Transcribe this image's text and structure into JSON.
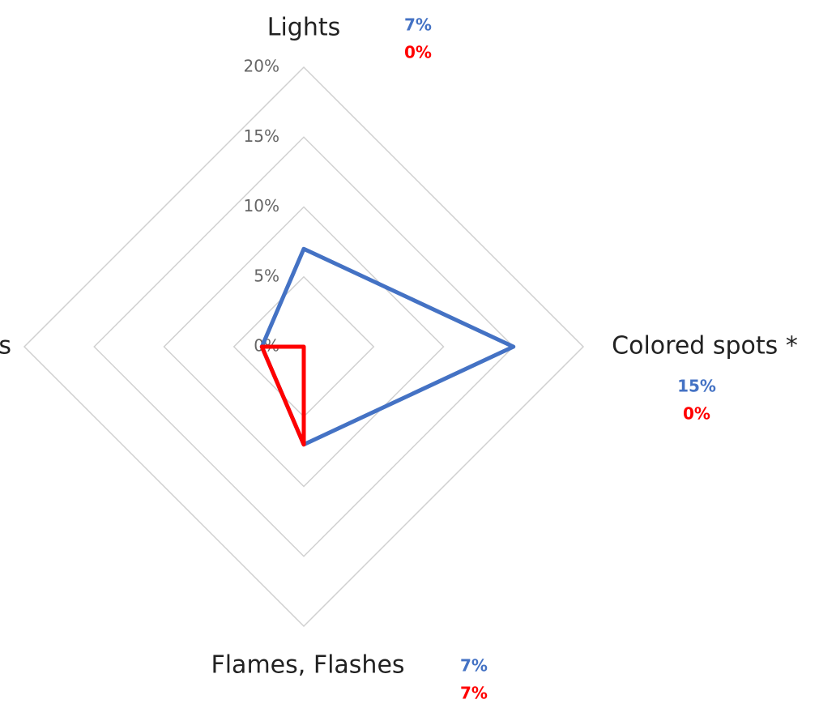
{
  "chart_data": {
    "type": "radar",
    "categories": [
      "Lights",
      "Colored spots *",
      "Flames, Flashes",
      "s"
    ],
    "series": [
      {
        "name": null,
        "color": "#4472c4",
        "values": [
          7,
          15,
          7,
          3
        ],
        "value_labels": [
          "7%",
          "15%",
          "7%",
          null
        ]
      },
      {
        "name": null,
        "color": "#ff0000",
        "values": [
          0,
          0,
          7,
          3
        ],
        "value_labels": [
          "0%",
          "0%",
          "7%",
          null
        ]
      }
    ],
    "ylim": [
      0,
      20
    ],
    "yticks": [
      {
        "value": 0,
        "label": "0%"
      },
      {
        "value": 5,
        "label": "5%"
      },
      {
        "value": 10,
        "label": "10%"
      },
      {
        "value": 15,
        "label": "15%"
      },
      {
        "value": 20,
        "label": "20%"
      }
    ],
    "grid": true
  }
}
